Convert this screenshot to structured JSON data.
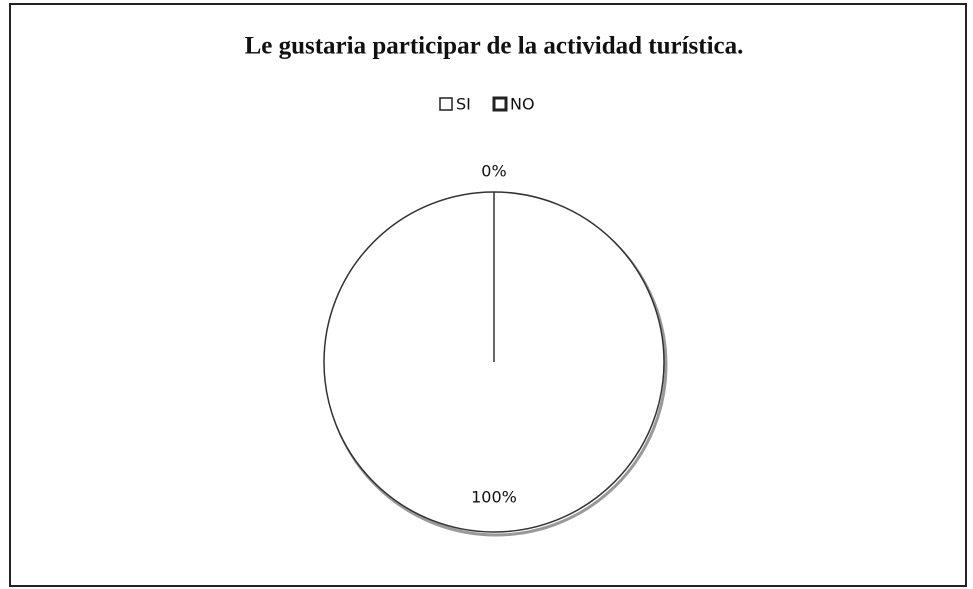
{
  "chart_data": {
    "type": "pie",
    "title": "Le gustaria participar  de la actividad turística.",
    "categories": [
      "SI",
      "NO"
    ],
    "values": [
      100,
      0
    ],
    "value_labels": [
      "100%",
      "0%"
    ],
    "colors": [
      "#ffffff",
      "#ffffff"
    ],
    "legend": "top"
  }
}
